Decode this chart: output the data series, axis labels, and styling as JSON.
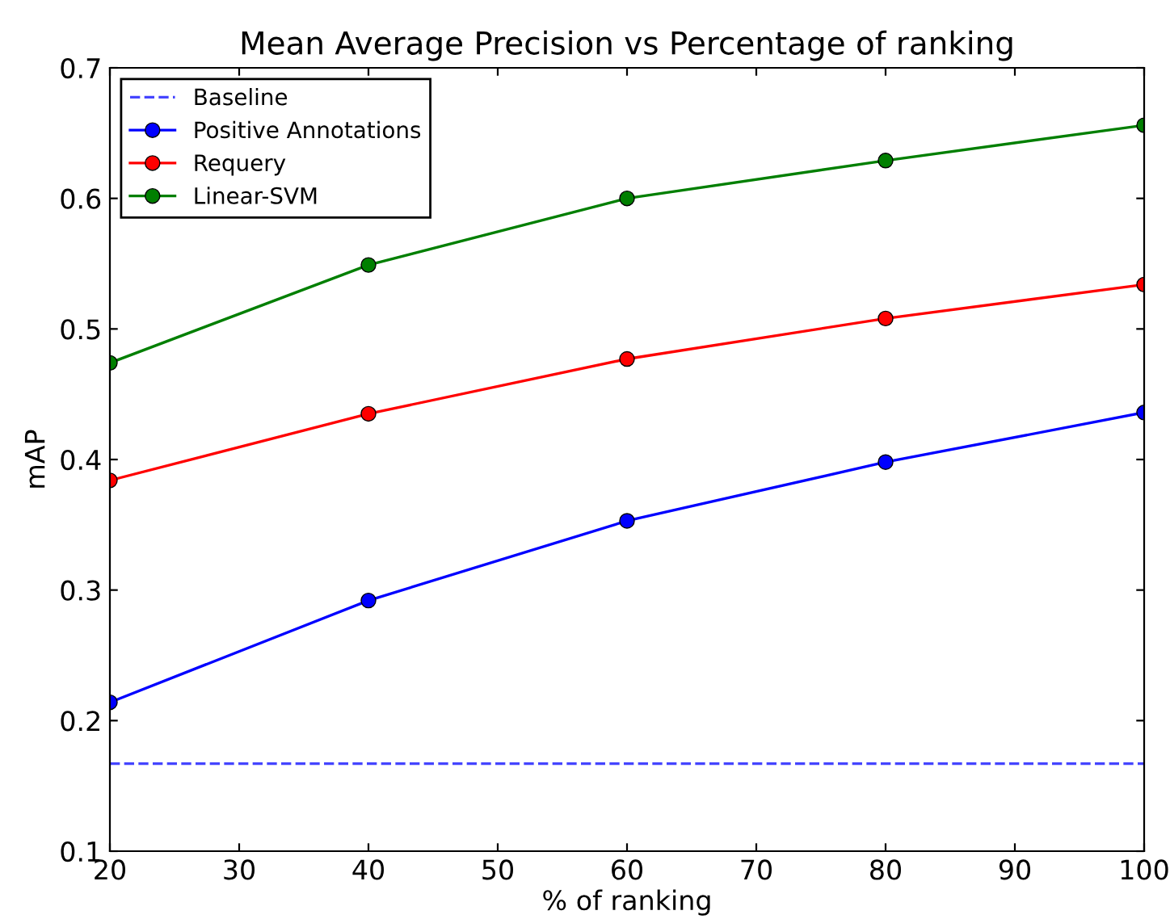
{
  "chart_data": {
    "type": "line",
    "title": "Mean Average Precision vs Percentage of ranking",
    "xlabel": "% of ranking",
    "ylabel": "mAP",
    "x": [
      20,
      40,
      60,
      80,
      100
    ],
    "series": [
      {
        "name": "Baseline",
        "color": "#4444ff",
        "x": [
          20,
          100
        ],
        "values": [
          0.167,
          0.167
        ],
        "line_style": "dashed",
        "marker": "none"
      },
      {
        "name": "Positive Annotations",
        "color": "#0000ff",
        "values": [
          0.214,
          0.292,
          0.353,
          0.398,
          0.436
        ],
        "marker": "circle",
        "line_style": "solid"
      },
      {
        "name": "Requery",
        "color": "#ff0000",
        "values": [
          0.384,
          0.435,
          0.477,
          0.508,
          0.534
        ],
        "marker": "circle",
        "line_style": "solid"
      },
      {
        "name": "Linear-SVM",
        "color": "#007f00",
        "values": [
          0.474,
          0.549,
          0.6,
          0.629,
          0.656
        ],
        "marker": "circle",
        "line_style": "solid"
      }
    ],
    "xlim": [
      20,
      100
    ],
    "xticks": [
      20,
      30,
      40,
      50,
      60,
      70,
      80,
      90,
      100
    ],
    "ylim": [
      0.1,
      0.7
    ],
    "yticks": [
      {
        "value": 0.1,
        "label": "0.1"
      },
      {
        "value": 0.2,
        "label": "0.2"
      },
      {
        "value": 0.3,
        "label": "0.3"
      },
      {
        "value": 0.4,
        "label": "0.4"
      },
      {
        "value": 0.5,
        "label": "0.5"
      },
      {
        "value": 0.6,
        "label": "0.6"
      },
      {
        "value": 0.7,
        "label": "0.7"
      }
    ],
    "legend": "top left",
    "grid": false
  }
}
